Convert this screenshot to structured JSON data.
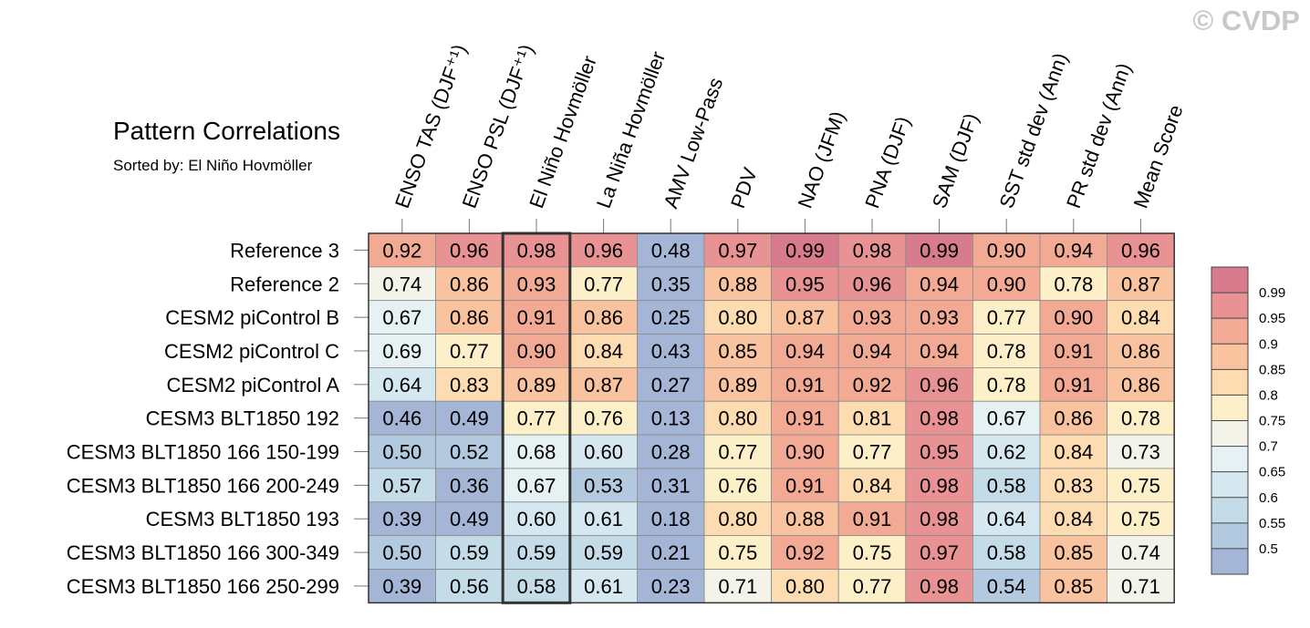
{
  "watermark": "© CVDP",
  "chart_data": {
    "type": "heatmap",
    "title": "Pattern Correlations",
    "subtitle": "Sorted by: El Niño Hovmöller",
    "highlight_column": "El Niño Hovmöller",
    "columns": [
      "ENSO TAS (DJF⁺¹)",
      "ENSO PSL (DJF⁺¹)",
      "El Niño Hovmöller",
      "La Niña Hovmöller",
      "AMV Low-Pass",
      "PDV",
      "NAO (JFM)",
      "PNA (DJF)",
      "SAM (DJF)",
      "SST std dev (Ann)",
      "PR std dev (Ann)",
      "Mean Score"
    ],
    "rows": [
      "Reference 3",
      "Reference 2",
      "CESM2 piControl B",
      "CESM2 piControl C",
      "CESM2 piControl A",
      "CESM3 BLT1850 192",
      "CESM3 BLT1850 166 150-199",
      "CESM3 BLT1850 166 200-249",
      "CESM3 BLT1850 193",
      "CESM3 BLT1850 166 300-349",
      "CESM3 BLT1850 166 250-299"
    ],
    "values": [
      [
        "0.92",
        "0.96",
        "0.98",
        "0.96",
        "0.48",
        "0.97",
        "0.99",
        "0.98",
        "0.99",
        "0.90",
        "0.94",
        "0.96"
      ],
      [
        "0.74",
        "0.86",
        "0.93",
        "0.77",
        "0.35",
        "0.88",
        "0.95",
        "0.96",
        "0.94",
        "0.90",
        "0.78",
        "0.87"
      ],
      [
        "0.67",
        "0.86",
        "0.91",
        "0.86",
        "0.25",
        "0.80",
        "0.87",
        "0.93",
        "0.93",
        "0.77",
        "0.90",
        "0.84"
      ],
      [
        "0.69",
        "0.77",
        "0.90",
        "0.84",
        "0.43",
        "0.85",
        "0.94",
        "0.94",
        "0.94",
        "0.78",
        "0.91",
        "0.86"
      ],
      [
        "0.64",
        "0.83",
        "0.89",
        "0.87",
        "0.27",
        "0.89",
        "0.91",
        "0.92",
        "0.96",
        "0.78",
        "0.91",
        "0.86"
      ],
      [
        "0.46",
        "0.49",
        "0.77",
        "0.76",
        "0.13",
        "0.80",
        "0.91",
        "0.81",
        "0.98",
        "0.67",
        "0.86",
        "0.78"
      ],
      [
        "0.50",
        "0.52",
        "0.68",
        "0.60",
        "0.28",
        "0.77",
        "0.90",
        "0.77",
        "0.95",
        "0.62",
        "0.84",
        "0.73"
      ],
      [
        "0.57",
        "0.36",
        "0.67",
        "0.53",
        "0.31",
        "0.76",
        "0.91",
        "0.84",
        "0.98",
        "0.58",
        "0.83",
        "0.75"
      ],
      [
        "0.39",
        "0.49",
        "0.60",
        "0.61",
        "0.18",
        "0.80",
        "0.88",
        "0.91",
        "0.98",
        "0.64",
        "0.84",
        "0.75"
      ],
      [
        "0.50",
        "0.59",
        "0.59",
        "0.59",
        "0.21",
        "0.75",
        "0.92",
        "0.75",
        "0.97",
        "0.58",
        "0.85",
        "0.74"
      ],
      [
        "0.39",
        "0.56",
        "0.58",
        "0.61",
        "0.23",
        "0.71",
        "0.80",
        "0.77",
        "0.98",
        "0.54",
        "0.85",
        "0.71"
      ]
    ],
    "colorbar": {
      "levels": [
        "0.5",
        "0.55",
        "0.6",
        "0.65",
        "0.7",
        "0.75",
        "0.8",
        "0.85",
        "0.9",
        "0.95",
        "0.99"
      ],
      "colors": [
        "#a5b5d6",
        "#b2c9e0",
        "#c4dbe8",
        "#d6e8ef",
        "#e6f1f3",
        "#f3f3ea",
        "#fdf0c8",
        "#fcdcb0",
        "#f8c39e",
        "#f2aa94",
        "#e89294",
        "#d87b8d"
      ]
    }
  }
}
